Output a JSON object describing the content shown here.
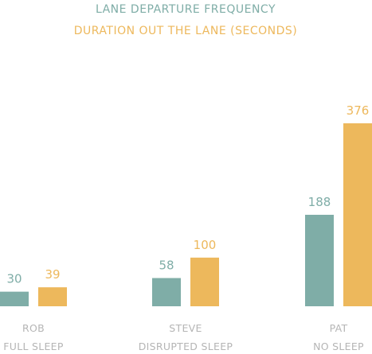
{
  "colors": {
    "series1": "#7fada7",
    "series2": "#edb85c",
    "category_text": "#b5b5b5"
  },
  "chart_data": {
    "type": "bar",
    "title_lines": [
      "LANE DEPARTURE FREQUENCY",
      "DURATION OUT THE LANE (SECONDS)"
    ],
    "xlabel": "",
    "ylabel": "",
    "categories": [
      [
        "ROB",
        "FULL SLEEP"
      ],
      [
        "STEVE",
        "DISRUPTED SLEEP"
      ],
      [
        "PAT",
        "NO SLEEP"
      ]
    ],
    "series": [
      {
        "name": "LANE DEPARTURE FREQUENCY",
        "values": [
          30,
          58,
          188
        ]
      },
      {
        "name": "DURATION OUT THE LANE (SECONDS)",
        "values": [
          39,
          100,
          376
        ]
      }
    ],
    "ylim": [
      0,
      376
    ],
    "grid": false,
    "legend": "none"
  }
}
